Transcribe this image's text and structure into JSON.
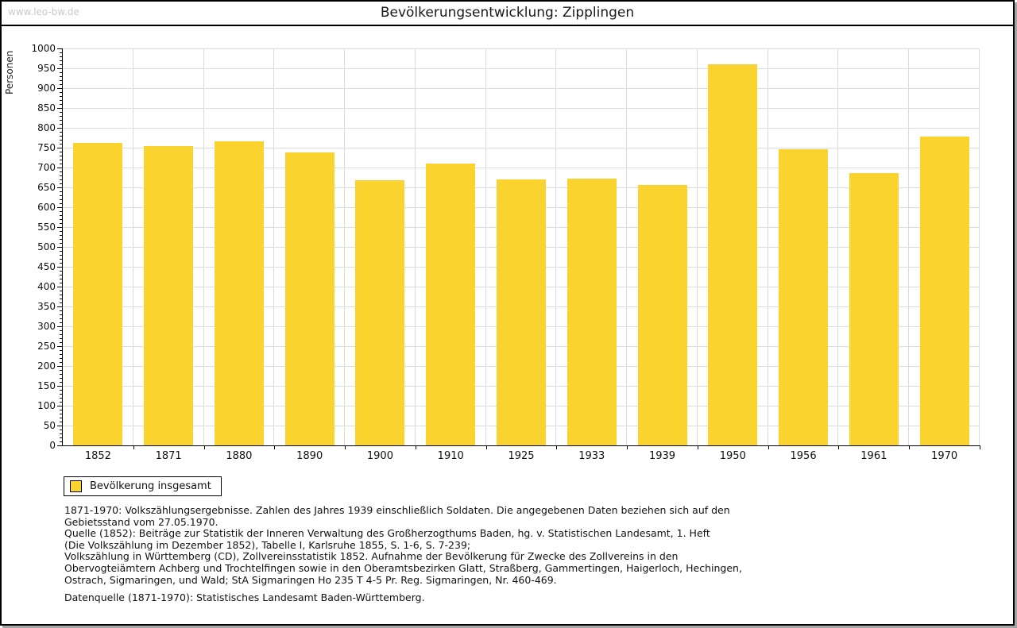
{
  "page": {
    "watermark": "www.leo-bw.de",
    "title": "Bevölkerungsentwicklung: Zipplingen"
  },
  "chart_data": {
    "type": "bar",
    "title": "Bevölkerungsentwicklung: Zipplingen",
    "xlabel": "",
    "ylabel": "Personen",
    "categories": [
      "1852",
      "1871",
      "1880",
      "1890",
      "1900",
      "1910",
      "1925",
      "1933",
      "1939",
      "1950",
      "1956",
      "1961",
      "1970"
    ],
    "series": [
      {
        "name": "Bevölkerung insgesamt",
        "values": [
          762,
          754,
          766,
          738,
          668,
          710,
          670,
          672,
          656,
          960,
          746,
          686,
          778
        ]
      }
    ],
    "ylim": [
      0,
      1000
    ],
    "ytick_step": 50,
    "yminor_step": 10,
    "grid": true,
    "legend_position": "bottom-left",
    "bar_color": "#FBD32F",
    "gridline_color": "#dcdcdc",
    "axis_color": "#000000"
  },
  "notes": {
    "lines": [
      "1871-1970: Volkszählungsergebnisse. Zahlen des Jahres 1939 einschließlich Soldaten. Die angegebenen Daten beziehen sich auf den",
      "Gebietsstand vom 27.05.1970.",
      "Quelle (1852): Beiträge zur Statistik der Inneren Verwaltung des Großherzogthums Baden, hg. v. Statistischen Landesamt, 1. Heft",
      "(Die Volkszählung im Dezember 1852), Tabelle I, Karlsruhe 1855, S. 1-6, S. 7-239;",
      "Volkszählung in Württemberg (CD), Zollvereinsstatistik 1852. Aufnahme der Bevölkerung für Zwecke des Zollvereins in den",
      "Obervogteiämtern Achberg und Trochtelfingen sowie in den Oberamtsbezirken Glatt, Straßberg, Gammertingen, Haigerloch, Hechingen,",
      "Ostrach, Sigmaringen, und Wald; StA Sigmaringen Ho 235 T 4-5 Pr. Reg. Sigmaringen, Nr. 460-469."
    ],
    "datasource": "Datenquelle (1871-1970): Statistisches Landesamt Baden-Württemberg."
  }
}
